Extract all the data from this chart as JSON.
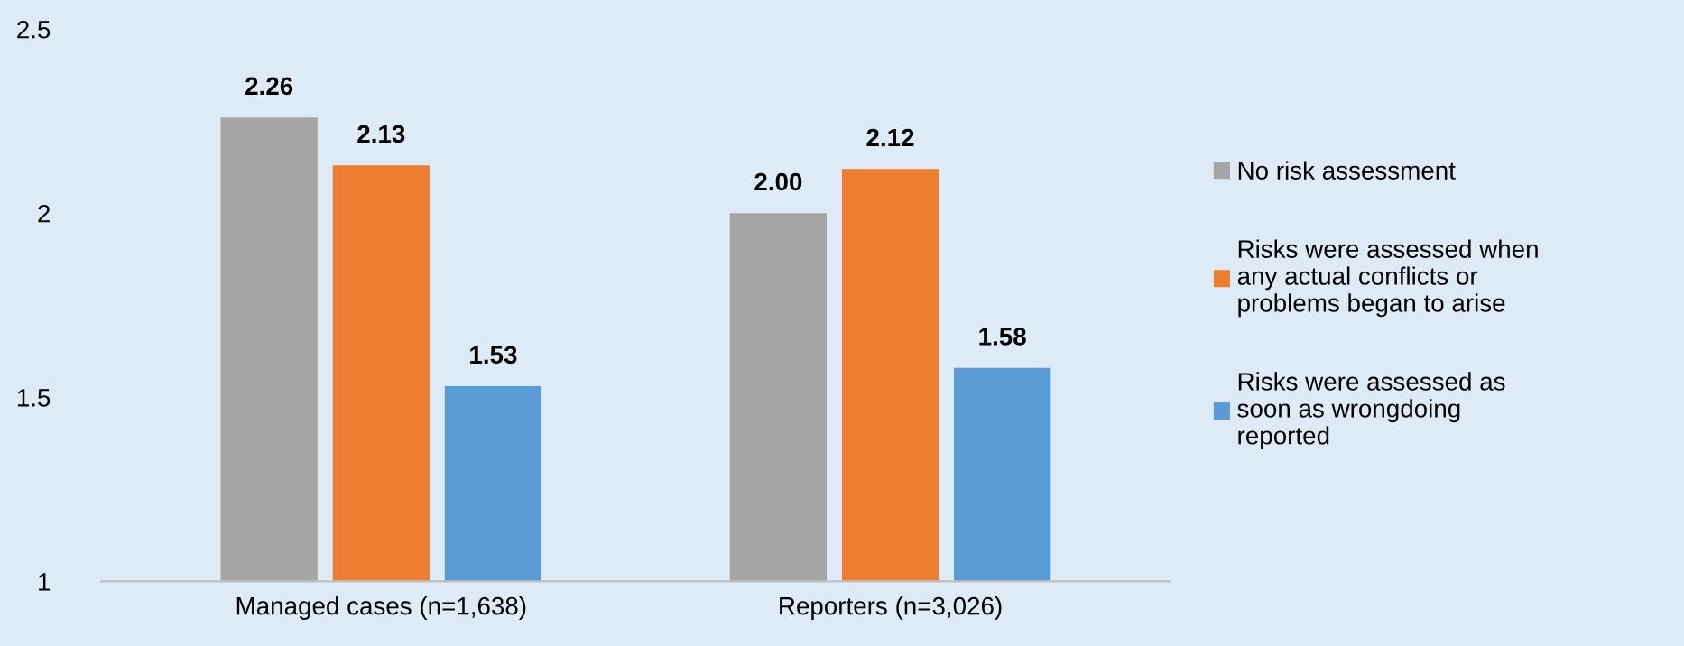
{
  "chart_data": {
    "type": "bar",
    "categories": [
      "Managed cases (n=1,638)",
      "Reporters (n=3,026)"
    ],
    "series": [
      {
        "name": "No risk assessment",
        "color": "#a5a5a5",
        "values": [
          2.26,
          2.0
        ],
        "value_labels": [
          "2.26",
          "2.00"
        ]
      },
      {
        "name": "Risks were assessed when\nany actual conflicts or\nproblems began to arise",
        "color": "#ed7d31",
        "values": [
          2.13,
          2.12
        ],
        "value_labels": [
          "2.13",
          "2.12"
        ]
      },
      {
        "name": "Risks were assessed as\nsoon as wrongdoing\nreported",
        "color": "#5b9bd5",
        "values": [
          1.53,
          1.58
        ],
        "value_labels": [
          "1.53",
          "1.58"
        ]
      }
    ],
    "ylim": [
      1,
      2.5
    ],
    "yticks": [
      1,
      1.5,
      2,
      2.5
    ],
    "grid": false,
    "legend": "right"
  }
}
